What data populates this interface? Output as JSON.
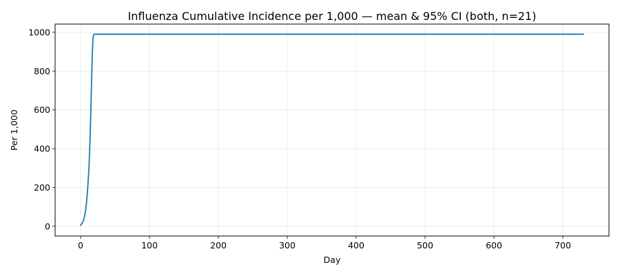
{
  "chart_data": {
    "type": "line",
    "title": "Influenza Cumulative Incidence per 1,000 — mean & 95% CI (both, n=21)",
    "xlabel": "Day",
    "ylabel": "Per 1,000",
    "xlim": [
      -37,
      767
    ],
    "ylim": [
      -50,
      1042
    ],
    "xticks": [
      0,
      100,
      200,
      300,
      400,
      500,
      600,
      700
    ],
    "yticks": [
      0,
      200,
      400,
      600,
      800,
      1000
    ],
    "grid": true,
    "legend": "none",
    "series": [
      {
        "color": "#1f77b4",
        "x": [
          0,
          2,
          4,
          6,
          8,
          10,
          12,
          13,
          14,
          15,
          16,
          17,
          18,
          19,
          20,
          25,
          50,
          100,
          200,
          300,
          400,
          500,
          600,
          700,
          730
        ],
        "y": [
          5,
          15,
          28,
          55,
          100,
          180,
          290,
          380,
          480,
          610,
          760,
          890,
          970,
          988,
          990,
          990,
          990,
          990,
          990,
          990,
          990,
          990,
          990,
          990,
          990
        ]
      }
    ]
  }
}
